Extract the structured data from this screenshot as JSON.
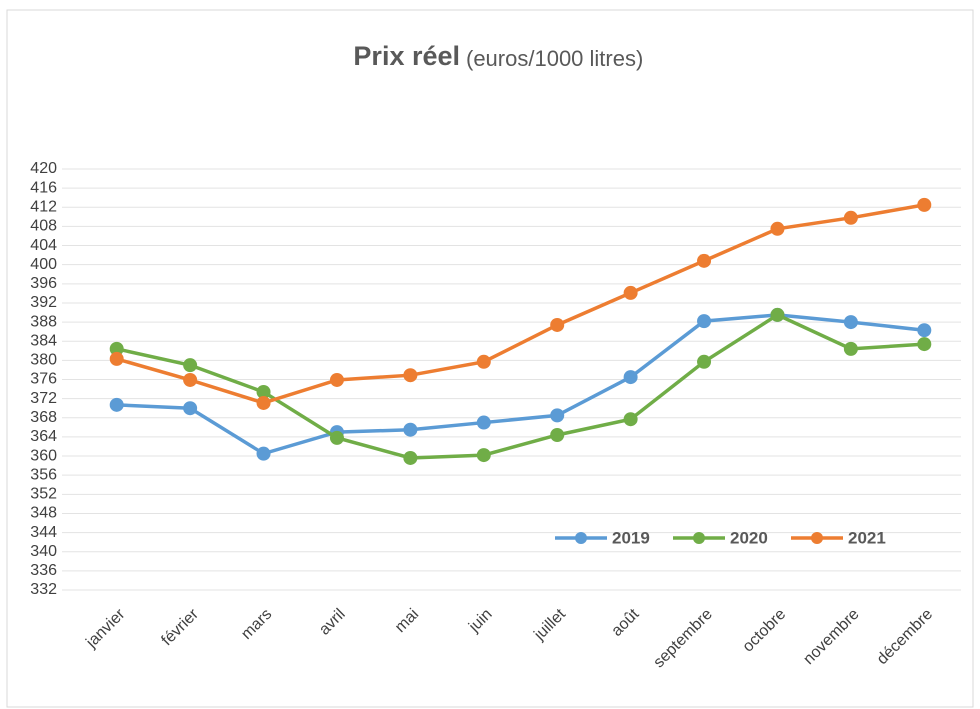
{
  "chart_data": {
    "type": "line",
    "title": "Prix réel",
    "subtitle": "(euros/1000 litres)",
    "categories": [
      "janvier",
      "février",
      "mars",
      "avril",
      "mai",
      "juin",
      "juillet",
      "août",
      "septembre",
      "octobre",
      "novembre",
      "décembre"
    ],
    "series": [
      {
        "name": "2019",
        "color": "#5b9bd5",
        "values": [
          370.7,
          370,
          360.5,
          365,
          365.5,
          367,
          368.5,
          376.5,
          388.2,
          389.5,
          388,
          386.3
        ]
      },
      {
        "name": "2020",
        "color": "#70ad47",
        "values": [
          382.4,
          379,
          373.4,
          363.8,
          359.6,
          360.2,
          364.4,
          367.7,
          379.7,
          389.5,
          382.4,
          383.4
        ]
      },
      {
        "name": "2021",
        "color": "#ed7d31",
        "values": [
          380.3,
          375.9,
          371.1,
          375.9,
          376.9,
          379.7,
          387.4,
          394.1,
          400.8,
          407.5,
          409.8,
          412.5
        ]
      }
    ],
    "ylim": [
      332,
      420
    ],
    "yticks": [
      332,
      336,
      340,
      344,
      348,
      352,
      356,
      360,
      364,
      368,
      372,
      376,
      380,
      384,
      388,
      392,
      396,
      400,
      404,
      408,
      412,
      416,
      420
    ],
    "grid": true,
    "legend": "bottom-right"
  }
}
